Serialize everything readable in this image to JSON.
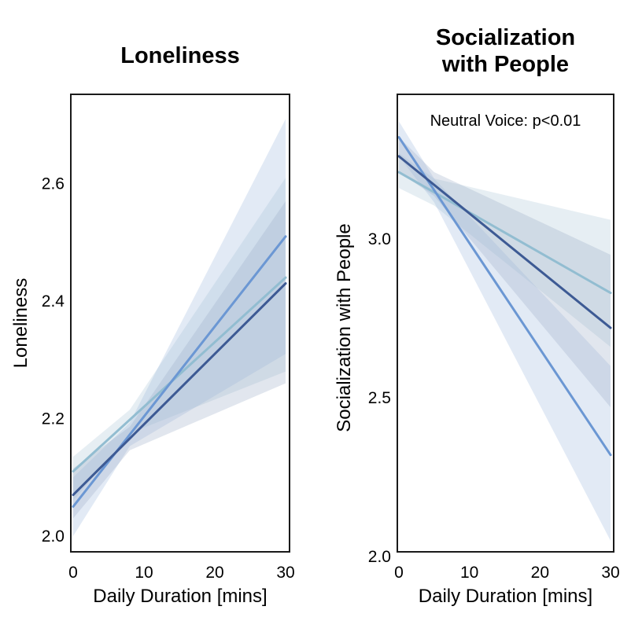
{
  "figure": {
    "background_color": "#ffffff",
    "text_color": "#000000",
    "panel_border_color": "#1a1a1a"
  },
  "chart_data": [
    {
      "type": "line",
      "id": "loneliness",
      "title_lines": [
        "Loneliness"
      ],
      "xlabel": "Daily Duration [mins]",
      "ylabel": "Loneliness",
      "annotation": "",
      "xlim": [
        0,
        30
      ],
      "xtick_values": [
        0,
        10,
        20,
        30
      ],
      "xtick_labels": [
        "0",
        "10",
        "20",
        "30"
      ],
      "ylim": [
        1.973,
        2.752
      ],
      "ytick_values": [
        2.0,
        2.2,
        2.4,
        2.6
      ],
      "ytick_labels": [
        "2.0",
        "2.2",
        "2.4",
        "2.6"
      ],
      "grid": false,
      "legend": "none",
      "series": [
        {
          "name": "light-teal",
          "color": "#92bdd1",
          "x": [
            0,
            30
          ],
          "y": [
            2.11,
            2.44
          ],
          "band": {
            "x": [
              0,
              8,
              30
            ],
            "upper": [
              2.135,
              2.215,
              2.61
            ],
            "lower": [
              2.06,
              2.175,
              2.28
            ]
          },
          "band_color": "#b0cbd9",
          "band_opacity": 0.32
        },
        {
          "name": "medium-blue",
          "color": "#6b97d3",
          "x": [
            0,
            30
          ],
          "y": [
            2.05,
            2.51
          ],
          "band": {
            "x": [
              0,
              8,
              30
            ],
            "upper": [
              2.1,
              2.193,
              2.71
            ],
            "lower": [
              2.0,
              2.153,
              2.31
            ]
          },
          "band_color": "#a0b8dd",
          "band_opacity": 0.3
        },
        {
          "name": "dark-navy",
          "color": "#3d5a94",
          "x": [
            0,
            30
          ],
          "y": [
            2.07,
            2.43
          ],
          "band": {
            "x": [
              0,
              8,
              30
            ],
            "upper": [
              2.115,
              2.186,
              2.57
            ],
            "lower": [
              2.03,
              2.146,
              2.26
            ]
          },
          "band_color": "#9aabc6",
          "band_opacity": 0.3
        }
      ]
    },
    {
      "type": "line",
      "id": "socialization-with-people",
      "title_lines": [
        "Socialization",
        "with People"
      ],
      "xlabel": "Daily Duration [mins]",
      "ylabel": "Socialization with People",
      "annotation": "Neutral Voice: p<0.01",
      "xlim": [
        0,
        30
      ],
      "xtick_values": [
        0,
        10,
        20,
        30
      ],
      "xtick_labels": [
        "0",
        "10",
        "20",
        "30"
      ],
      "ylim": [
        2.015,
        3.455
      ],
      "ytick_values": [
        2.0,
        2.5,
        3.0
      ],
      "ytick_labels": [
        "2.0",
        "2.5",
        "3.0"
      ],
      "grid": false,
      "legend": "none",
      "series": [
        {
          "name": "light-teal",
          "color": "#92bdd1",
          "x": [
            0,
            30
          ],
          "y": [
            3.21,
            2.83
          ],
          "band": {
            "x": [
              0,
              5,
              30
            ],
            "upper": [
              3.27,
              3.19,
              3.06
            ],
            "lower": [
              3.16,
              3.105,
              2.66
            ]
          },
          "band_color": "#b0cbd9",
          "band_opacity": 0.32
        },
        {
          "name": "medium-blue",
          "color": "#6b97d3",
          "x": [
            0,
            30
          ],
          "y": [
            3.32,
            2.32
          ],
          "band": {
            "x": [
              0,
              5,
              30
            ],
            "upper": [
              3.37,
              3.19,
              2.6
            ],
            "lower": [
              3.26,
              3.115,
              2.05
            ]
          },
          "band_color": "#a0b8dd",
          "band_opacity": 0.3
        },
        {
          "name": "dark-navy",
          "color": "#3d5a94",
          "x": [
            0,
            30
          ],
          "y": [
            3.26,
            2.72
          ],
          "band": {
            "x": [
              0,
              5,
              30
            ],
            "upper": [
              3.32,
              3.21,
              2.95
            ],
            "lower": [
              3.21,
              3.135,
              2.47
            ]
          },
          "band_color": "#9aabc6",
          "band_opacity": 0.3
        }
      ]
    }
  ]
}
